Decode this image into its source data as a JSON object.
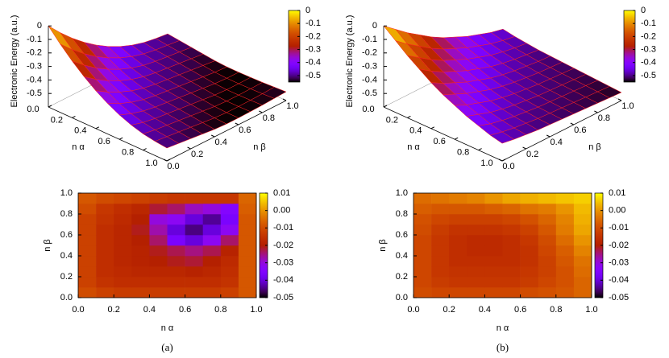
{
  "chart_data": [
    {
      "type": "surface3d",
      "zlabel": "Electronic Energy (a.u.)",
      "xlabel": "n α",
      "ylabel": "n β",
      "x": [
        0,
        0.1,
        0.2,
        0.3,
        0.4,
        0.5,
        0.6,
        0.7,
        0.8,
        0.9,
        1
      ],
      "y": [
        0,
        0.1,
        0.2,
        0.3,
        0.4,
        0.5,
        0.6,
        0.7,
        0.8,
        0.9,
        1
      ],
      "xlim": [
        0,
        1
      ],
      "ylim": [
        0,
        1
      ],
      "zlim": [
        -0.6,
        0
      ],
      "xticks": [
        {
          "value": 0,
          "label": "0.0"
        },
        0.2,
        0.4,
        0.6,
        0.8,
        {
          "value": 1,
          "label": "1.0"
        }
      ],
      "yticks": [
        {
          "value": 0,
          "label": "0.0"
        },
        0.2,
        0.4,
        0.6,
        0.8,
        {
          "value": 1,
          "label": "1.0"
        }
      ],
      "zticks": [
        0,
        -0.1,
        -0.2,
        -0.3,
        -0.4,
        -0.5
      ],
      "cblim": [
        -0.55,
        0
      ],
      "cbticks": [
        0,
        -0.1,
        -0.2,
        -0.3,
        -0.4,
        -0.5
      ],
      "mesh_color": "#ff2020",
      "z": [
        [
          0,
          -0.095,
          -0.18,
          -0.255,
          -0.32,
          -0.375,
          -0.42,
          -0.455,
          -0.48,
          -0.495,
          -0.505
        ],
        [
          -0.095,
          -0.18,
          -0.255,
          -0.32,
          -0.375,
          -0.42,
          -0.455,
          -0.48,
          -0.495,
          -0.505,
          -0.515
        ],
        [
          -0.18,
          -0.255,
          -0.32,
          -0.375,
          -0.42,
          -0.455,
          -0.48,
          -0.495,
          -0.505,
          -0.515,
          -0.525
        ],
        [
          -0.255,
          -0.32,
          -0.375,
          -0.42,
          -0.455,
          -0.48,
          -0.495,
          -0.505,
          -0.515,
          -0.525,
          -0.535
        ],
        [
          -0.32,
          -0.375,
          -0.42,
          -0.455,
          -0.48,
          -0.495,
          -0.505,
          -0.515,
          -0.525,
          -0.535,
          -0.545
        ],
        [
          -0.375,
          -0.42,
          -0.455,
          -0.48,
          -0.495,
          -0.505,
          -0.515,
          -0.525,
          -0.535,
          -0.545,
          -0.55
        ],
        [
          -0.42,
          -0.455,
          -0.48,
          -0.495,
          -0.505,
          -0.515,
          -0.525,
          -0.535,
          -0.545,
          -0.55,
          -0.55
        ],
        [
          -0.455,
          -0.48,
          -0.495,
          -0.505,
          -0.515,
          -0.525,
          -0.535,
          -0.545,
          -0.55,
          -0.55,
          -0.548
        ],
        [
          -0.48,
          -0.495,
          -0.505,
          -0.515,
          -0.525,
          -0.535,
          -0.545,
          -0.55,
          -0.55,
          -0.548,
          -0.545
        ],
        [
          -0.495,
          -0.505,
          -0.515,
          -0.525,
          -0.535,
          -0.545,
          -0.55,
          -0.55,
          -0.548,
          -0.545,
          -0.54
        ],
        [
          -0.505,
          -0.515,
          -0.525,
          -0.535,
          -0.545,
          -0.55,
          -0.55,
          -0.548,
          -0.545,
          -0.54,
          -0.535
        ]
      ]
    },
    {
      "type": "surface3d",
      "zlabel": "Electronic Energy (a.u.)",
      "xlabel": "n α",
      "ylabel": "n β",
      "x": [
        0,
        0.1,
        0.2,
        0.3,
        0.4,
        0.5,
        0.6,
        0.7,
        0.8,
        0.9,
        1
      ],
      "y": [
        0,
        0.1,
        0.2,
        0.3,
        0.4,
        0.5,
        0.6,
        0.7,
        0.8,
        0.9,
        1
      ],
      "xlim": [
        0,
        1
      ],
      "ylim": [
        0,
        1
      ],
      "zlim": [
        -0.6,
        0
      ],
      "xticks": [
        {
          "value": 0,
          "label": "0.0"
        },
        0.2,
        0.4,
        0.6,
        0.8,
        {
          "value": 1,
          "label": "1.0"
        }
      ],
      "yticks": [
        {
          "value": 0,
          "label": "0.0"
        },
        0.2,
        0.4,
        0.6,
        0.8,
        {
          "value": 1,
          "label": "1.0"
        }
      ],
      "zticks": [
        0,
        -0.1,
        -0.2,
        -0.3,
        -0.4,
        -0.5
      ],
      "cblim": [
        -0.55,
        0
      ],
      "cbticks": [
        0,
        -0.1,
        -0.2,
        -0.3,
        -0.4,
        -0.5
      ],
      "mesh_color": "#ff2020",
      "z": [
        [
          0,
          -0.07,
          -0.14,
          -0.2,
          -0.26,
          -0.31,
          -0.35,
          -0.39,
          -0.42,
          -0.45,
          -0.47
        ],
        [
          -0.07,
          -0.14,
          -0.2,
          -0.26,
          -0.31,
          -0.35,
          -0.39,
          -0.42,
          -0.45,
          -0.47,
          -0.485
        ],
        [
          -0.14,
          -0.2,
          -0.26,
          -0.31,
          -0.35,
          -0.39,
          -0.42,
          -0.45,
          -0.47,
          -0.485,
          -0.495
        ],
        [
          -0.2,
          -0.26,
          -0.31,
          -0.35,
          -0.39,
          -0.42,
          -0.45,
          -0.47,
          -0.485,
          -0.495,
          -0.505
        ],
        [
          -0.26,
          -0.31,
          -0.35,
          -0.39,
          -0.42,
          -0.45,
          -0.47,
          -0.485,
          -0.495,
          -0.505,
          -0.51
        ],
        [
          -0.31,
          -0.35,
          -0.39,
          -0.42,
          -0.45,
          -0.47,
          -0.485,
          -0.495,
          -0.505,
          -0.51,
          -0.515
        ],
        [
          -0.35,
          -0.39,
          -0.42,
          -0.45,
          -0.47,
          -0.485,
          -0.495,
          -0.505,
          -0.51,
          -0.515,
          -0.52
        ],
        [
          -0.39,
          -0.42,
          -0.45,
          -0.47,
          -0.485,
          -0.495,
          -0.505,
          -0.51,
          -0.515,
          -0.52,
          -0.525
        ],
        [
          -0.42,
          -0.45,
          -0.47,
          -0.485,
          -0.495,
          -0.505,
          -0.51,
          -0.515,
          -0.52,
          -0.525,
          -0.53
        ],
        [
          -0.45,
          -0.47,
          -0.485,
          -0.495,
          -0.505,
          -0.51,
          -0.515,
          -0.52,
          -0.525,
          -0.53,
          -0.535
        ],
        [
          -0.47,
          -0.485,
          -0.495,
          -0.505,
          -0.51,
          -0.515,
          -0.52,
          -0.525,
          -0.53,
          -0.535,
          -0.54
        ]
      ]
    },
    {
      "type": "heatmap",
      "xlabel": "n α",
      "ylabel": "n β",
      "caption": "(a)",
      "x": [
        0.05,
        0.15,
        0.25,
        0.35,
        0.45,
        0.55,
        0.65,
        0.75,
        0.85,
        0.95
      ],
      "y": [
        0.05,
        0.15,
        0.25,
        0.35,
        0.45,
        0.55,
        0.65,
        0.75,
        0.85,
        0.95
      ],
      "xlim": [
        0,
        1
      ],
      "ylim": [
        0,
        1
      ],
      "xticks": [
        {
          "value": 0,
          "label": "0.0"
        },
        0.2,
        0.4,
        0.6,
        0.8,
        {
          "value": 1,
          "label": "1.0"
        }
      ],
      "yticks": [
        {
          "value": 0,
          "label": "0.0"
        },
        0.2,
        0.4,
        0.6,
        0.8,
        {
          "value": 1,
          "label": "1.0"
        }
      ],
      "cblim": [
        -0.05,
        0.01
      ],
      "cbticks": [
        0.01,
        {
          "value": 0,
          "label": "0.00"
        },
        -0.01,
        -0.02,
        -0.03,
        -0.04,
        -0.05
      ],
      "z": [
        [
          -0.01,
          -0.012,
          -0.013,
          -0.013,
          -0.013,
          -0.013,
          -0.013,
          -0.013,
          -0.012,
          -0.008
        ],
        [
          -0.012,
          -0.015,
          -0.016,
          -0.016,
          -0.016,
          -0.016,
          -0.016,
          -0.016,
          -0.015,
          -0.008
        ],
        [
          -0.012,
          -0.016,
          -0.017,
          -0.018,
          -0.018,
          -0.018,
          -0.019,
          -0.018,
          -0.016,
          -0.008
        ],
        [
          -0.012,
          -0.016,
          -0.018,
          -0.019,
          -0.02,
          -0.021,
          -0.022,
          -0.02,
          -0.017,
          -0.008
        ],
        [
          -0.012,
          -0.016,
          -0.018,
          -0.019,
          -0.021,
          -0.023,
          -0.025,
          -0.023,
          -0.019,
          -0.008
        ],
        [
          -0.012,
          -0.016,
          -0.018,
          -0.02,
          -0.024,
          -0.036,
          -0.04,
          -0.032,
          -0.024,
          -0.008
        ],
        [
          -0.012,
          -0.016,
          -0.018,
          -0.021,
          -0.027,
          -0.04,
          -0.045,
          -0.04,
          -0.032,
          -0.008
        ],
        [
          -0.012,
          -0.015,
          -0.017,
          -0.02,
          -0.03,
          -0.032,
          -0.04,
          -0.044,
          -0.036,
          -0.008
        ],
        [
          -0.01,
          -0.014,
          -0.016,
          -0.018,
          -0.022,
          -0.024,
          -0.028,
          -0.03,
          -0.034,
          -0.007
        ],
        [
          -0.008,
          -0.01,
          -0.011,
          -0.012,
          -0.013,
          -0.014,
          -0.014,
          -0.014,
          -0.014,
          -0.006
        ]
      ]
    },
    {
      "type": "heatmap",
      "xlabel": "n α",
      "ylabel": "n β",
      "caption": "(b)",
      "x": [
        0.05,
        0.15,
        0.25,
        0.35,
        0.45,
        0.55,
        0.65,
        0.75,
        0.85,
        0.95
      ],
      "y": [
        0.05,
        0.15,
        0.25,
        0.35,
        0.45,
        0.55,
        0.65,
        0.75,
        0.85,
        0.95
      ],
      "xlim": [
        0,
        1
      ],
      "ylim": [
        0,
        1
      ],
      "xticks": [
        {
          "value": 0,
          "label": "0.0"
        },
        0.2,
        0.4,
        0.6,
        0.8,
        {
          "value": 1,
          "label": "1.0"
        }
      ],
      "yticks": [
        {
          "value": 0,
          "label": "0.0"
        },
        0.2,
        0.4,
        0.6,
        0.8,
        {
          "value": 1,
          "label": "1.0"
        }
      ],
      "cblim": [
        -0.05,
        0.01
      ],
      "cbticks": [
        0.01,
        {
          "value": 0,
          "label": "0.00"
        },
        -0.01,
        -0.02,
        -0.03,
        -0.04,
        -0.05
      ],
      "z": [
        [
          -0.01,
          -0.011,
          -0.011,
          -0.011,
          -0.011,
          -0.011,
          -0.01,
          -0.009,
          -0.008,
          -0.006
        ],
        [
          -0.011,
          -0.013,
          -0.014,
          -0.014,
          -0.014,
          -0.014,
          -0.013,
          -0.011,
          -0.009,
          -0.006
        ],
        [
          -0.011,
          -0.014,
          -0.015,
          -0.015,
          -0.015,
          -0.015,
          -0.014,
          -0.012,
          -0.009,
          -0.005
        ],
        [
          -0.011,
          -0.014,
          -0.016,
          -0.016,
          -0.016,
          -0.016,
          -0.015,
          -0.012,
          -0.008,
          -0.004
        ],
        [
          -0.011,
          -0.014,
          -0.016,
          -0.017,
          -0.017,
          -0.016,
          -0.015,
          -0.011,
          -0.007,
          -0.002
        ],
        [
          -0.011,
          -0.014,
          -0.016,
          -0.017,
          -0.017,
          -0.016,
          -0.014,
          -0.01,
          -0.005,
          0.0
        ],
        [
          -0.01,
          -0.013,
          -0.015,
          -0.015,
          -0.015,
          -0.014,
          -0.012,
          -0.008,
          -0.003,
          0.002
        ],
        [
          -0.009,
          -0.011,
          -0.012,
          -0.012,
          -0.012,
          -0.011,
          -0.009,
          -0.006,
          -0.002,
          0.003
        ],
        [
          -0.007,
          -0.008,
          -0.008,
          -0.008,
          -0.007,
          -0.006,
          -0.004,
          -0.003,
          0.0,
          0.004
        ],
        [
          -0.005,
          -0.004,
          -0.003,
          -0.002,
          0.0,
          0.002,
          0.003,
          0.004,
          0.005,
          0.006
        ]
      ]
    }
  ]
}
